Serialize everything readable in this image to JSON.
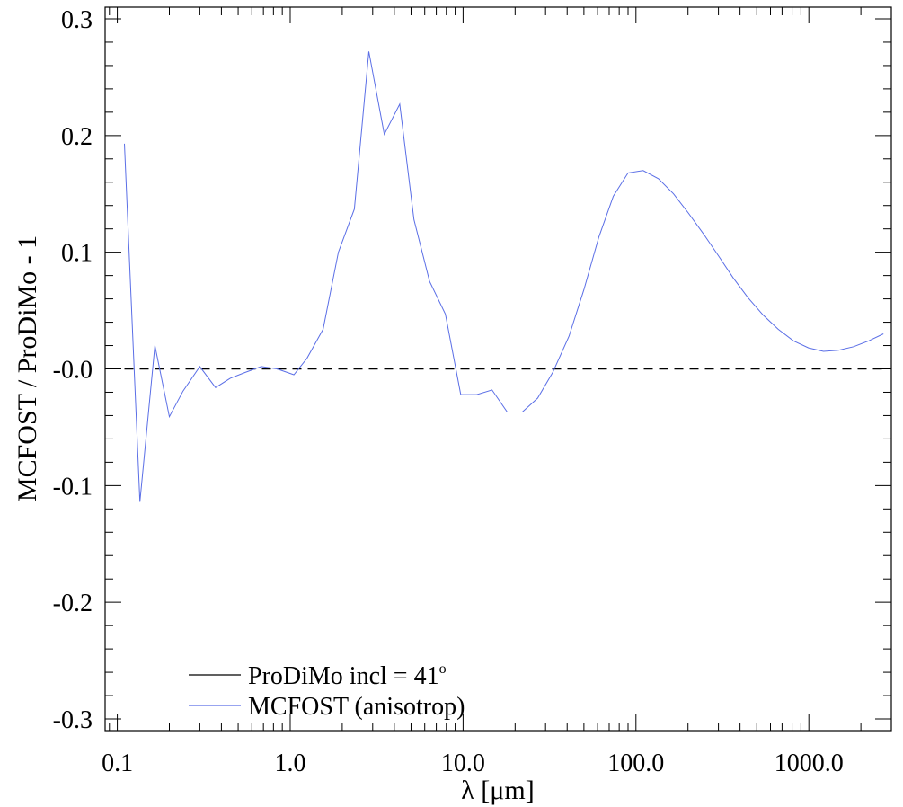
{
  "chart_data": {
    "type": "line",
    "xlabel": "λ [μm]",
    "ylabel": "MCFOST / ProDiMo - 1",
    "x_scale": "log",
    "xlim": [
      0.085,
      3000
    ],
    "ylim": [
      -0.31,
      0.31
    ],
    "x_ticks": [
      {
        "value": 0.1,
        "label": "0.1"
      },
      {
        "value": 1,
        "label": "1.0"
      },
      {
        "value": 10,
        "label": "10.0"
      },
      {
        "value": 100,
        "label": "100.0"
      },
      {
        "value": 1000,
        "label": "1000.0"
      }
    ],
    "y_ticks": [
      {
        "value": 0.3,
        "label": "0.3"
      },
      {
        "value": 0.2,
        "label": "0.2"
      },
      {
        "value": 0.1,
        "label": "0.1"
      },
      {
        "value": 0.0,
        "label": "-0.0"
      },
      {
        "value": -0.1,
        "label": "-0.1"
      },
      {
        "value": -0.2,
        "label": "-0.2"
      },
      {
        "value": -0.3,
        "label": "-0.3"
      }
    ],
    "legend": {
      "placement": "bottom-left",
      "entries": [
        {
          "prefix": "ProDiMo incl = 41",
          "sup": "o",
          "color": "#000000"
        },
        {
          "text": "MCFOST (anisotrop)",
          "color": "#5a6ee6"
        }
      ]
    },
    "series": [
      {
        "color": "#000000",
        "dashed": true,
        "x": [
          0.11,
          2800
        ],
        "y": [
          0.0,
          0.0
        ]
      },
      {
        "color": "#5a6ee6",
        "dashed": false,
        "x": [
          0.11,
          0.135,
          0.165,
          0.2,
          0.24,
          0.3,
          0.37,
          0.45,
          0.55,
          0.68,
          0.84,
          1.05,
          1.25,
          1.55,
          1.9,
          2.35,
          2.85,
          3.5,
          4.3,
          5.2,
          6.4,
          7.9,
          9.7,
          12.0,
          14.7,
          18.0,
          22.0,
          27.0,
          33.0,
          41.0,
          50.0,
          61.0,
          74.0,
          90.0,
          110.0,
          135.0,
          165.0,
          200.0,
          245.0,
          300.0,
          365.0,
          445.0,
          545.0,
          665.0,
          815.0,
          995.0,
          1215.0,
          1485.0,
          1815.0,
          2220.0,
          2700.0
        ],
        "y": [
          0.193,
          -0.114,
          0.02,
          -0.041,
          -0.019,
          0.002,
          -0.016,
          -0.008,
          -0.003,
          0.002,
          0.0,
          -0.005,
          0.009,
          0.034,
          0.1,
          0.137,
          0.272,
          0.201,
          0.227,
          0.128,
          0.075,
          0.047,
          -0.022,
          -0.022,
          -0.018,
          -0.037,
          -0.037,
          -0.025,
          -0.003,
          0.028,
          0.068,
          0.113,
          0.148,
          0.168,
          0.17,
          0.163,
          0.15,
          0.134,
          0.116,
          0.097,
          0.078,
          0.061,
          0.046,
          0.034,
          0.024,
          0.018,
          0.015,
          0.016,
          0.019,
          0.024,
          0.03
        ]
      }
    ]
  }
}
